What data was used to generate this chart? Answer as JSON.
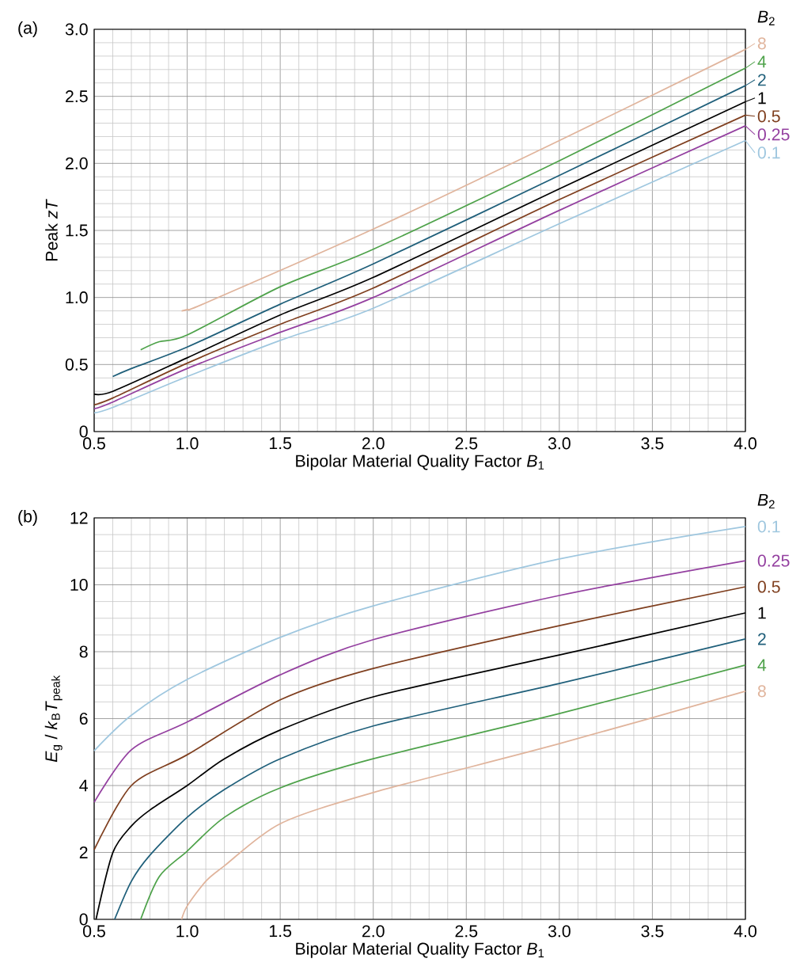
{
  "chart_data": [
    {
      "type": "line",
      "title": "(a)",
      "xlabel": "Bipolar Material Quality Factor *B*$_{1}$",
      "ylabel": "Peak *zT*",
      "legend_title": "*B*$_{2}$",
      "legend": "right",
      "grid": true,
      "xlim": [
        0.5,
        4.0
      ],
      "xticks": [
        {
          "value": 0.5,
          "label": "0.5"
        },
        {
          "value": 1,
          "label": "1.0"
        },
        {
          "value": 1.5,
          "label": "1.5"
        },
        {
          "value": 2,
          "label": "2.0"
        },
        {
          "value": 2.5,
          "label": "2.5"
        },
        {
          "value": 3,
          "label": "3.0"
        },
        {
          "value": 3.5,
          "label": "3.5"
        },
        {
          "value": 4,
          "label": "4.0"
        }
      ],
      "ylim": [
        0,
        3.0
      ],
      "yticks": [
        {
          "value": 0,
          "label": "0"
        },
        {
          "value": 0.5,
          "label": "0.5"
        },
        {
          "value": 1,
          "label": "1.0"
        },
        {
          "value": 1.5,
          "label": "1.5"
        },
        {
          "value": 2,
          "label": "2.0"
        },
        {
          "value": 2.5,
          "label": "2.5"
        },
        {
          "value": 3,
          "label": "3.0"
        }
      ],
      "series": [
        {
          "name": "8",
          "color": "#e0b49c",
          "x": [
            0.97,
            1.0,
            1.1,
            2.0,
            3.0,
            4.0
          ],
          "values": [
            0.9,
            0.91,
            0.96,
            1.51,
            2.17,
            2.85
          ]
        },
        {
          "name": "4",
          "color": "#4ea24a",
          "x": [
            0.75,
            0.85,
            1.0,
            1.5,
            2.0,
            3.0,
            4.0
          ],
          "values": [
            0.61,
            0.67,
            0.72,
            1.08,
            1.36,
            2.02,
            2.71
          ]
        },
        {
          "name": "2",
          "color": "#1f5f7a",
          "x": [
            0.6,
            0.7,
            1.0,
            1.5,
            2.0,
            3.0,
            4.0
          ],
          "values": [
            0.41,
            0.47,
            0.63,
            0.95,
            1.25,
            1.91,
            2.58
          ]
        },
        {
          "name": "1",
          "color": "#000000",
          "x": [
            0.5,
            0.6,
            1.0,
            1.5,
            2.0,
            3.0,
            4.0
          ],
          "values": [
            0.28,
            0.3,
            0.55,
            0.87,
            1.15,
            1.81,
            2.46
          ]
        },
        {
          "name": "0.5",
          "color": "#7f3f1f",
          "x": [
            0.5,
            0.6,
            1.0,
            1.5,
            2.0,
            3.0,
            4.0
          ],
          "values": [
            0.2,
            0.25,
            0.51,
            0.8,
            1.07,
            1.73,
            2.36
          ]
        },
        {
          "name": "0.25",
          "color": "#9440a0",
          "x": [
            0.5,
            0.6,
            1.0,
            1.5,
            2.0,
            3.0,
            4.0
          ],
          "values": [
            0.17,
            0.22,
            0.47,
            0.74,
            1.0,
            1.65,
            2.28
          ]
        },
        {
          "name": "0.1",
          "color": "#9fc7df",
          "x": [
            0.5,
            0.6,
            1.0,
            1.5,
            2.0,
            3.0,
            4.0
          ],
          "values": [
            0.14,
            0.18,
            0.41,
            0.68,
            0.92,
            1.55,
            2.17
          ]
        }
      ]
    },
    {
      "type": "line",
      "title": "(b)",
      "xlabel": "Bipolar Material Quality Factor *B*$_{1}$",
      "ylabel": "*E*$_{g}$ / *k*$_{B}$*T*$_{peak}$",
      "legend_title": "*B*$_{2}$",
      "legend": "right",
      "grid": true,
      "xlim": [
        0.5,
        4.0
      ],
      "xticks": [
        {
          "value": 0.5,
          "label": "0.5"
        },
        {
          "value": 1,
          "label": "1.0"
        },
        {
          "value": 1.5,
          "label": "1.5"
        },
        {
          "value": 2,
          "label": "2.0"
        },
        {
          "value": 2.5,
          "label": "2.5"
        },
        {
          "value": 3,
          "label": "3.0"
        },
        {
          "value": 3.5,
          "label": "3.5"
        },
        {
          "value": 4,
          "label": "4.0"
        }
      ],
      "ylim": [
        0,
        12
      ],
      "yticks": [
        0,
        2,
        4,
        6,
        8,
        10,
        12
      ],
      "series": [
        {
          "name": "0.1",
          "color": "#9fc7df",
          "x": [
            0.5,
            0.7,
            1.0,
            1.5,
            2.0,
            3.0,
            4.0
          ],
          "values": [
            5.04,
            6.1,
            7.17,
            8.43,
            9.37,
            10.77,
            11.74
          ]
        },
        {
          "name": "0.25",
          "color": "#9440a0",
          "x": [
            0.5,
            0.7,
            1.0,
            1.5,
            2.0,
            3.0,
            4.0
          ],
          "values": [
            3.5,
            5.07,
            5.9,
            7.31,
            8.36,
            9.68,
            10.72
          ]
        },
        {
          "name": "0.5",
          "color": "#7f3f1f",
          "x": [
            0.5,
            0.7,
            1.0,
            1.5,
            2.0,
            3.0,
            4.0
          ],
          "values": [
            2.08,
            4.0,
            4.92,
            6.56,
            7.5,
            8.78,
            9.94
          ]
        },
        {
          "name": "1",
          "color": "#000000",
          "x": [
            0.51,
            0.6,
            0.7,
            0.8,
            1.0,
            1.2,
            1.5,
            2.0,
            3.0,
            4.0
          ],
          "values": [
            0,
            1.99,
            2.79,
            3.27,
            4.0,
            4.8,
            5.66,
            6.65,
            7.9,
            9.16
          ]
        },
        {
          "name": "2",
          "color": "#1f5f7a",
          "x": [
            0.61,
            0.7,
            0.8,
            1.0,
            1.2,
            1.5,
            2.0,
            3.0,
            4.0
          ],
          "values": [
            0,
            1.14,
            1.92,
            3.05,
            3.88,
            4.8,
            5.78,
            7.05,
            8.38
          ]
        },
        {
          "name": "4",
          "color": "#4ea24a",
          "x": [
            0.75,
            0.85,
            1.0,
            1.2,
            1.5,
            2.0,
            3.0,
            4.0
          ],
          "values": [
            0,
            1.28,
            2.04,
            3.05,
            3.93,
            4.8,
            6.15,
            7.6
          ]
        },
        {
          "name": "8",
          "color": "#e0b49c",
          "x": [
            0.97,
            1.0,
            1.1,
            1.2,
            1.5,
            2.0,
            3.0,
            4.0
          ],
          "values": [
            0,
            0.4,
            1.14,
            1.6,
            2.86,
            3.79,
            5.25,
            6.82
          ]
        }
      ]
    }
  ]
}
